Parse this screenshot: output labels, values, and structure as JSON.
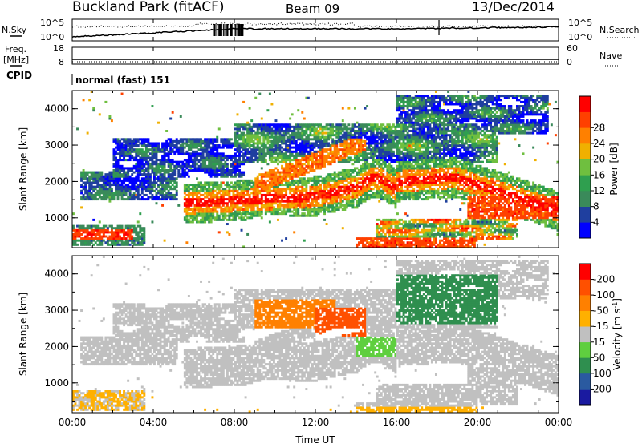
{
  "header": {
    "site_title": "Buckland Park (fitACF)",
    "beam_label": "Beam 09",
    "date_label": "13/Dec/2014"
  },
  "noise_panel": {
    "left_label": "N.Sky",
    "right_label": "N.Search",
    "left_ticks": [
      "10^5",
      "10^0"
    ],
    "right_ticks": [
      "10^5",
      "10^0"
    ]
  },
  "freq_panel": {
    "left_label_line1": "Freq.",
    "left_label_line2": "[MHz]",
    "right_label": "Nave",
    "left_ticks": [
      "18",
      "8"
    ],
    "right_ticks": [
      "60",
      "0"
    ]
  },
  "cpid_panel": {
    "label": "CPID",
    "mode_text": "normal (fast) 151"
  },
  "colors": {
    "power": [
      "#0000ff",
      "#1f3f9f",
      "#3a8a5a",
      "#2f9f4f",
      "#6fbf3f",
      "#f0b000",
      "#ff8000",
      "#ff4000",
      "#ff0000"
    ],
    "velocity": [
      "#1a1aa0",
      "#2a5aa0",
      "#2f8f4f",
      "#5fcf3f",
      "#c0c0c0",
      "#ffb000",
      "#ff8000",
      "#ff5000",
      "#ff0000"
    ]
  },
  "chart_data": [
    {
      "type": "heatmap",
      "name": "power",
      "ylabel": "Slant Range [km]",
      "ylim": [
        180,
        4500
      ],
      "xlim_hours": [
        0,
        24
      ],
      "x_ticks": [
        "00:00",
        "04:00",
        "08:00",
        "12:00",
        "16:00",
        "20:00",
        "00:00"
      ],
      "y_ticks": [
        1000,
        2000,
        3000,
        4000
      ],
      "colorbar": {
        "label": "Power [dB]",
        "tick_labels": [
          "4",
          "8",
          "12",
          "16",
          "20",
          "24",
          "28"
        ],
        "range": [
          0,
          32
        ]
      }
    },
    {
      "type": "heatmap",
      "name": "velocity",
      "ylabel": "Slant Range [km]",
      "ylim": [
        180,
        4500
      ],
      "xlim_hours": [
        0,
        24
      ],
      "x_ticks": [
        "00:00",
        "04:00",
        "08:00",
        "12:00",
        "16:00",
        "20:00",
        "00:00"
      ],
      "xlabel": "Time UT",
      "y_ticks": [
        1000,
        2000,
        3000,
        4000
      ],
      "colorbar": {
        "label": "Velocity [m s",
        "label_sup": "-1",
        "label_end": "]",
        "tick_labels": [
          "200",
          "100",
          "50",
          "15",
          "-15",
          "-50",
          "-100",
          "-200"
        ]
      }
    }
  ]
}
